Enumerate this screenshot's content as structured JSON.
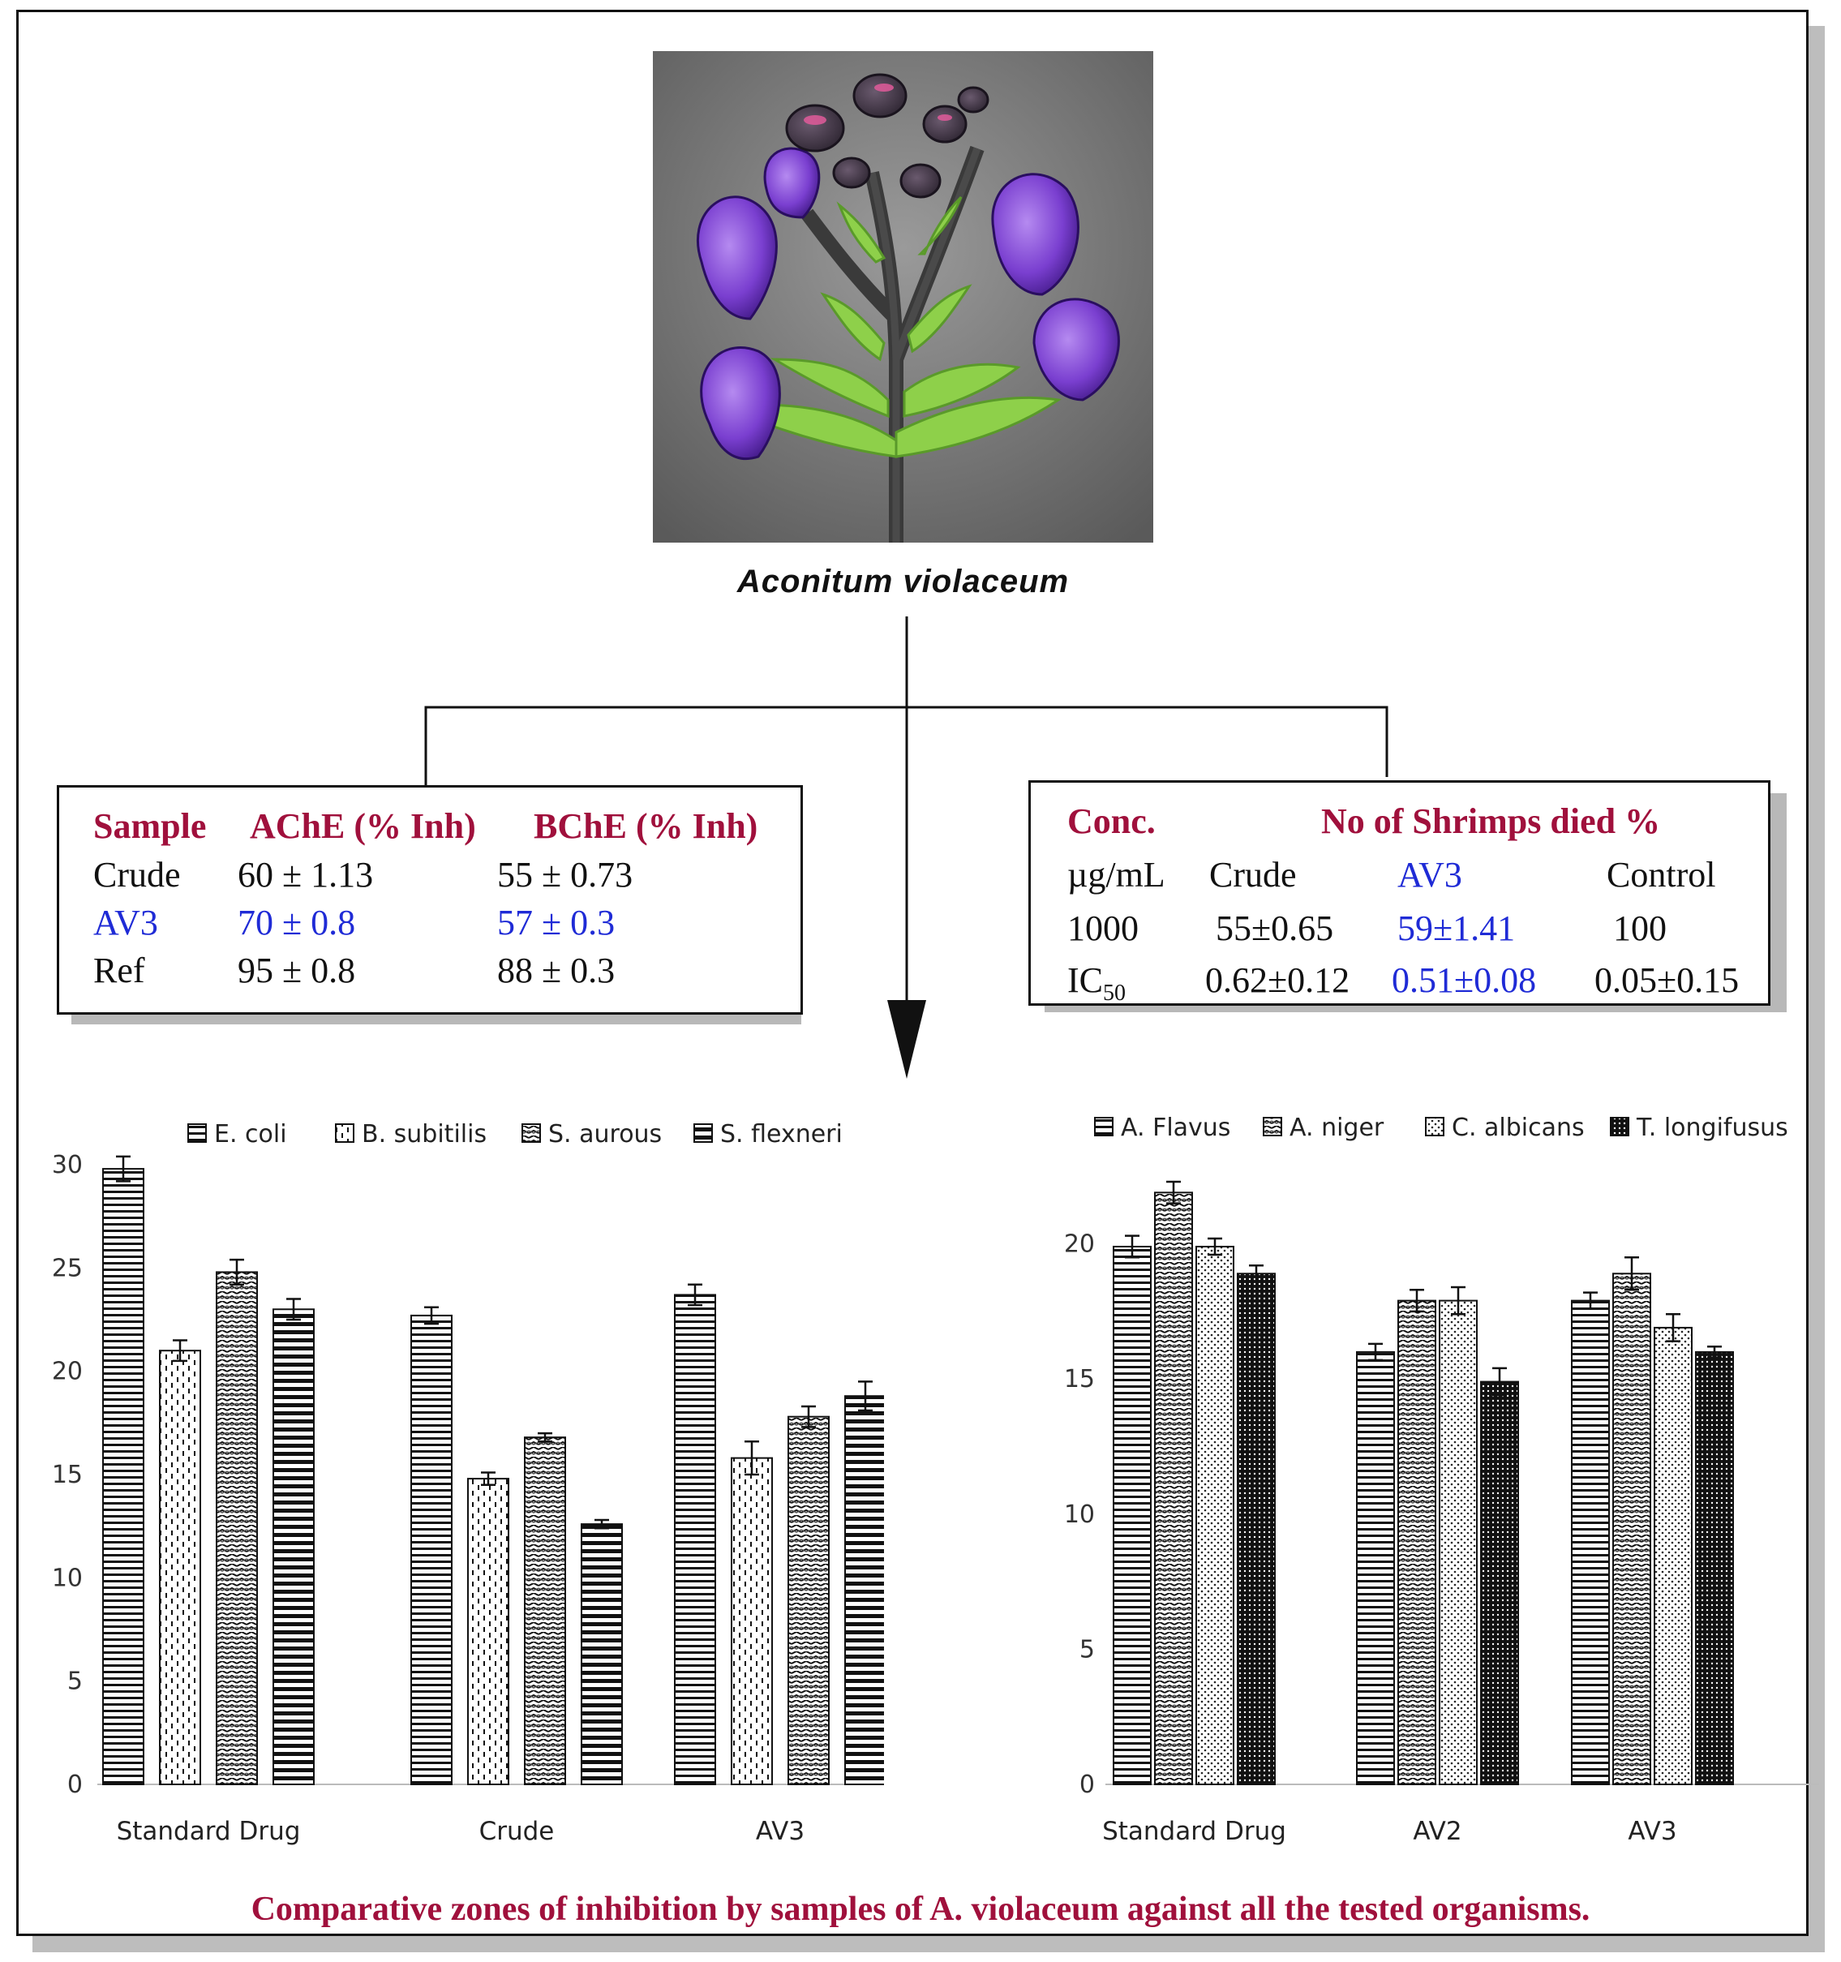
{
  "figure": {
    "species_caption": "Aconitum violaceum",
    "bottom_caption": "Comparative zones of inhibition by samples of A. violaceum against all the tested organisms."
  },
  "enzyme_table": {
    "headers": [
      "Sample",
      "AChE (% Inh)",
      "BChE (% Inh)"
    ],
    "rows": [
      {
        "sample": "Crude",
        "ache": "60 ± 1.13",
        "bche": "55 ± 0.73",
        "highlight": false
      },
      {
        "sample": "AV3",
        "ache": "70 ± 0.8",
        "bche": "57 ± 0.3",
        "highlight": true
      },
      {
        "sample": "Ref",
        "ache": "95 ± 0.8",
        "bche": "88 ± 0.3",
        "highlight": false
      }
    ]
  },
  "shrimp_table": {
    "header_conc": "Conc.",
    "header_main": "No of Shrimps died %",
    "unit": "µg/mL",
    "columns": [
      "Crude",
      "AV3",
      "Control"
    ],
    "row_1000": {
      "label": "1000",
      "crude": "55±0.65",
      "av3": "59±1.41",
      "control": "100"
    },
    "row_ic50": {
      "label_main": "IC",
      "label_sub": "50",
      "crude": "0.62±0.12",
      "av3": "0.51±0.08",
      "control": "0.05±0.15"
    }
  },
  "chart_data": [
    {
      "type": "bar",
      "categories": [
        "Standard Drug",
        "Crude",
        "AV3"
      ],
      "series": [
        {
          "name": "E. coli",
          "values": [
            29.8,
            22.7,
            23.7
          ],
          "errors": [
            0.6,
            0.4,
            0.5
          ]
        },
        {
          "name": "B. subitilis",
          "values": [
            21.0,
            14.8,
            15.8
          ],
          "errors": [
            0.5,
            0.3,
            0.8
          ]
        },
        {
          "name": "S. aurous",
          "values": [
            24.8,
            16.8,
            17.8
          ],
          "errors": [
            0.6,
            0.2,
            0.5
          ]
        },
        {
          "name": "S. flexneri",
          "values": [
            23.0,
            12.6,
            18.8
          ],
          "errors": [
            0.5,
            0.2,
            0.7
          ]
        }
      ],
      "ylim": [
        0,
        30
      ],
      "yticks": [
        0,
        5,
        10,
        15,
        20,
        25,
        30
      ],
      "legend": "top",
      "grid": false
    },
    {
      "type": "bar",
      "categories": [
        "Standard Drug",
        "AV2",
        "AV3"
      ],
      "series": [
        {
          "name": "A. Flavus",
          "values": [
            19.9,
            16.0,
            17.9
          ],
          "errors": [
            0.4,
            0.3,
            0.3
          ]
        },
        {
          "name": "A. niger",
          "values": [
            21.9,
            17.9,
            18.9
          ],
          "errors": [
            0.4,
            0.4,
            0.6
          ]
        },
        {
          "name": "C. albicans",
          "values": [
            19.9,
            17.9,
            16.9
          ],
          "errors": [
            0.3,
            0.5,
            0.5
          ]
        },
        {
          "name": "T. longifusus",
          "values": [
            18.9,
            14.9,
            16.0
          ],
          "errors": [
            0.3,
            0.5,
            0.2
          ]
        }
      ],
      "ylim": [
        0,
        22
      ],
      "yticks": [
        0,
        5,
        10,
        15,
        20
      ],
      "legend": "top",
      "grid": false
    }
  ]
}
